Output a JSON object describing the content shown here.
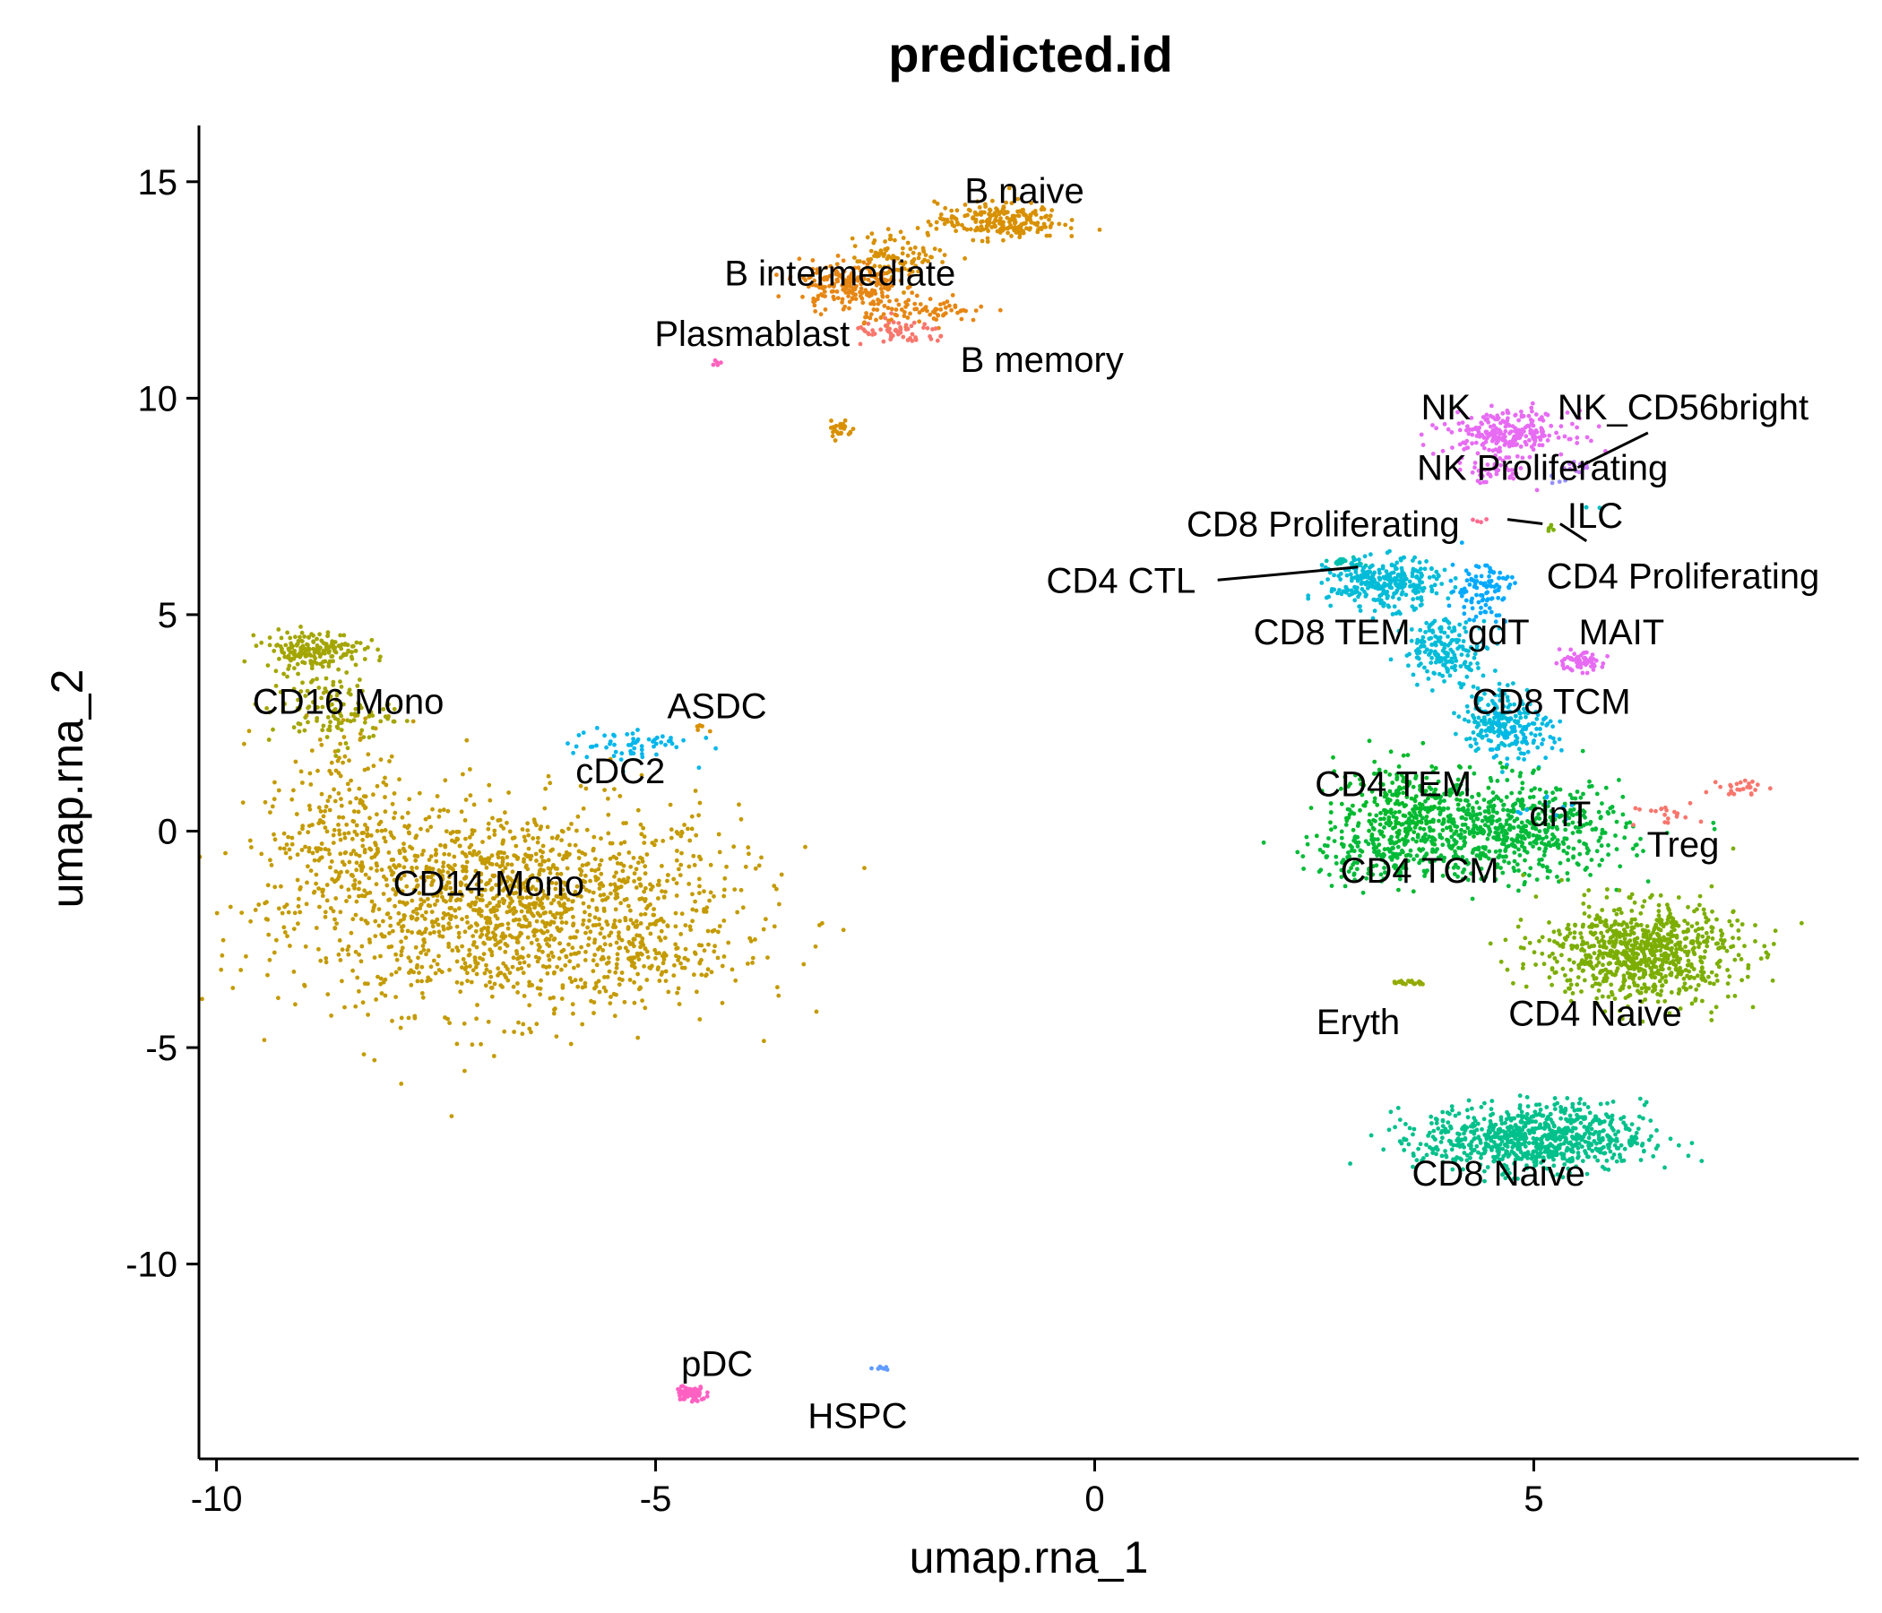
{
  "chart_data": {
    "type": "scatter",
    "title": "predicted.id",
    "xlabel": "umap.rna_1",
    "ylabel": "umap.rna_2",
    "xlim": [
      -10.2,
      8.7
    ],
    "ylim": [
      -14.5,
      16.3
    ],
    "x_ticks": [
      -10,
      -5,
      0,
      5
    ],
    "x_tick_labels": [
      "-10",
      "-5",
      "0",
      "5"
    ],
    "y_ticks": [
      -10,
      -5,
      0,
      5,
      10,
      15
    ],
    "y_tick_labels": [
      "-10",
      "-5",
      "0",
      "5",
      "10",
      "15"
    ],
    "grid": false,
    "legend": "none",
    "clusters": [
      {
        "name": "CD14 Mono",
        "color": "#C49A00",
        "label_x": -6.9,
        "label_y": -1.2,
        "blobs": [
          {
            "cx": -6.6,
            "cy": -1.8,
            "sx": 1.8,
            "sy": 1.7,
            "n": 1500
          },
          {
            "cx": -8.6,
            "cy": 0.0,
            "sx": 0.6,
            "sy": 1.8,
            "n": 250
          },
          {
            "cx": -5.0,
            "cy": -3.0,
            "sx": 0.7,
            "sy": 0.4,
            "n": 80
          }
        ]
      },
      {
        "name": "CD16 Mono",
        "color": "#A3A500",
        "label_x": -8.5,
        "label_y": 3.0,
        "blobs": [
          {
            "cx": -8.9,
            "cy": 4.2,
            "sx": 0.4,
            "sy": 0.3,
            "n": 180
          },
          {
            "cx": -8.7,
            "cy": 2.8,
            "sx": 0.5,
            "sy": 0.6,
            "n": 120
          }
        ]
      },
      {
        "name": "cDC2",
        "color": "#00B6EB",
        "label_x": -5.4,
        "label_y": 1.4,
        "blobs": [
          {
            "cx": -5.3,
            "cy": 2.0,
            "sx": 0.5,
            "sy": 0.3,
            "n": 60
          }
        ]
      },
      {
        "name": "ASDC",
        "color": "#D89000",
        "label_x": -4.3,
        "label_y": 2.9,
        "blobs": [
          {
            "cx": -4.5,
            "cy": 2.4,
            "sx": 0.1,
            "sy": 0.08,
            "n": 6
          }
        ]
      },
      {
        "name": "B naive",
        "color": "#D89000",
        "label_x": -0.8,
        "label_y": 14.8,
        "blobs": [
          {
            "cx": -1.1,
            "cy": 14.1,
            "sx": 0.5,
            "sy": 0.3,
            "n": 220
          },
          {
            "cx": -2.2,
            "cy": 13.3,
            "sx": 0.4,
            "sy": 0.4,
            "n": 100
          },
          {
            "cx": -2.9,
            "cy": 9.3,
            "sx": 0.1,
            "sy": 0.2,
            "n": 25
          }
        ]
      },
      {
        "name": "B intermediate",
        "color": "#E68613",
        "label_x": -2.9,
        "label_y": 12.9,
        "blobs": [
          {
            "cx": -2.8,
            "cy": 12.6,
            "sx": 0.4,
            "sy": 0.4,
            "n": 200
          },
          {
            "cx": -1.9,
            "cy": 12.0,
            "sx": 0.5,
            "sy": 0.2,
            "n": 80
          }
        ]
      },
      {
        "name": "B memory",
        "color": "#F8766D",
        "label_x": -0.6,
        "label_y": 10.9,
        "blobs": [
          {
            "cx": -2.2,
            "cy": 11.5,
            "sx": 0.4,
            "sy": 0.2,
            "n": 60
          }
        ]
      },
      {
        "name": "Plasmablast",
        "color": "#FF62BC",
        "label_x": -3.9,
        "label_y": 11.5,
        "blobs": [
          {
            "cx": -4.3,
            "cy": 10.8,
            "sx": 0.08,
            "sy": 0.04,
            "n": 5
          }
        ]
      },
      {
        "name": "pDC",
        "color": "#FF61C3",
        "label_x": -4.3,
        "label_y": -12.3,
        "blobs": [
          {
            "cx": -4.6,
            "cy": -13.0,
            "sx": 0.12,
            "sy": 0.12,
            "n": 90
          }
        ]
      },
      {
        "name": "HSPC",
        "color": "#619CFF",
        "label_x": -2.7,
        "label_y": -13.5,
        "blobs": [
          {
            "cx": -2.4,
            "cy": -12.4,
            "sx": 0.08,
            "sy": 0.04,
            "n": 8
          }
        ]
      },
      {
        "name": "NK",
        "color": "#E76BF3",
        "label_x": 4.0,
        "label_y": 9.8,
        "blobs": [
          {
            "cx": 4.7,
            "cy": 9.2,
            "sx": 0.5,
            "sy": 0.35,
            "n": 250
          },
          {
            "cx": 4.5,
            "cy": 8.3,
            "sx": 0.3,
            "sy": 0.2,
            "n": 40
          }
        ]
      },
      {
        "name": "NK_CD56bright",
        "color": "#C77CFF",
        "label_x": 6.7,
        "label_y": 9.8,
        "blobs": [
          {
            "cx": 5.5,
            "cy": 8.4,
            "sx": 0.12,
            "sy": 0.1,
            "n": 12
          }
        ]
      },
      {
        "name": "NK Proliferating",
        "color": "#9590FF",
        "label_x": 5.1,
        "label_y": 8.4,
        "blobs": [
          {
            "cx": 5.3,
            "cy": 8.1,
            "sx": 0.08,
            "sy": 0.08,
            "n": 4
          }
        ]
      },
      {
        "name": "ILC",
        "color": "#00BFC4",
        "label_x": 5.7,
        "label_y": 7.3,
        "blobs": [
          {
            "cx": 5.6,
            "cy": 7.5,
            "sx": 0.05,
            "sy": 0.05,
            "n": 3
          }
        ]
      },
      {
        "name": "CD8 Proliferating",
        "color": "#FF6C91",
        "label_x": 2.6,
        "label_y": 7.1,
        "blobs": [
          {
            "cx": 4.4,
            "cy": 7.2,
            "sx": 0.08,
            "sy": 0.08,
            "n": 4
          }
        ]
      },
      {
        "name": "CD4 Proliferating",
        "color": "#7CAE00",
        "label_x": 6.7,
        "label_y": 5.9,
        "blobs": [
          {
            "cx": 5.2,
            "cy": 7.0,
            "sx": 0.05,
            "sy": 0.08,
            "n": 5
          }
        ]
      },
      {
        "name": "CD4 CTL",
        "color": "#00C0AF",
        "label_x": 0.3,
        "label_y": 5.8,
        "blobs": [
          {
            "cx": 2.9,
            "cy": 6.2,
            "sx": 0.15,
            "sy": 0.08,
            "n": 25
          }
        ]
      },
      {
        "name": "CD8 TEM",
        "color": "#00BCD8",
        "label_x": 2.7,
        "label_y": 4.6,
        "blobs": [
          {
            "cx": 3.3,
            "cy": 5.7,
            "sx": 0.45,
            "sy": 0.4,
            "n": 300
          },
          {
            "cx": 4.0,
            "cy": 4.2,
            "sx": 0.35,
            "sy": 0.5,
            "n": 180
          },
          {
            "cx": 4.6,
            "cy": 2.6,
            "sx": 0.3,
            "sy": 0.6,
            "n": 160
          }
        ]
      },
      {
        "name": "gdT",
        "color": "#00A9FF",
        "label_x": 4.6,
        "label_y": 4.6,
        "blobs": [
          {
            "cx": 4.4,
            "cy": 5.6,
            "sx": 0.25,
            "sy": 0.5,
            "n": 100
          }
        ]
      },
      {
        "name": "MAIT",
        "color": "#E76BF3",
        "label_x": 6.0,
        "label_y": 4.6,
        "blobs": [
          {
            "cx": 5.5,
            "cy": 3.9,
            "sx": 0.2,
            "sy": 0.15,
            "n": 70
          }
        ]
      },
      {
        "name": "CD8 TCM",
        "color": "#00B8E7",
        "label_x": 5.2,
        "label_y": 3.0,
        "blobs": [
          {
            "cx": 4.8,
            "cy": 2.2,
            "sx": 0.35,
            "sy": 0.4,
            "n": 80
          }
        ]
      },
      {
        "name": "CD4 TEM",
        "color": "#00B929",
        "label_x": 3.4,
        "label_y": 1.1,
        "blobs": [
          {
            "cx": 3.6,
            "cy": 0.5,
            "sx": 0.6,
            "sy": 0.8,
            "n": 300
          }
        ]
      },
      {
        "name": "CD4 TCM",
        "color": "#00BA38",
        "label_x": 3.7,
        "label_y": -0.9,
        "blobs": [
          {
            "cx": 4.8,
            "cy": 0.0,
            "sx": 0.9,
            "sy": 0.8,
            "n": 600
          },
          {
            "cx": 3.2,
            "cy": -0.6,
            "sx": 0.6,
            "sy": 0.4,
            "n": 150
          }
        ]
      },
      {
        "name": "dnT",
        "color": "#00B0F6",
        "label_x": 5.3,
        "label_y": 0.4,
        "blobs": [
          {
            "cx": 5.0,
            "cy": 0.6,
            "sx": 0.3,
            "sy": 0.3,
            "n": 10
          }
        ]
      },
      {
        "name": "Treg",
        "color": "#F8766D",
        "label_x": 6.7,
        "label_y": -0.3,
        "blobs": [
          {
            "cx": 7.4,
            "cy": 1.0,
            "sx": 0.2,
            "sy": 0.15,
            "n": 25
          },
          {
            "cx": 6.5,
            "cy": 0.4,
            "sx": 0.3,
            "sy": 0.2,
            "n": 20
          }
        ]
      },
      {
        "name": "CD4 Naive",
        "color": "#7CAE00",
        "label_x": 5.7,
        "label_y": -4.2,
        "blobs": [
          {
            "cx": 6.2,
            "cy": -2.8,
            "sx": 0.8,
            "sy": 0.8,
            "n": 800
          }
        ]
      },
      {
        "name": "CD8 Naive",
        "color": "#00C08B",
        "label_x": 4.6,
        "label_y": -7.9,
        "blobs": [
          {
            "cx": 5.0,
            "cy": -7.1,
            "sx": 0.9,
            "sy": 0.55,
            "n": 800
          }
        ]
      },
      {
        "name": "Eryth",
        "color": "#93AA00",
        "label_x": 3.0,
        "label_y": -4.4,
        "blobs": [
          {
            "cx": 3.6,
            "cy": -3.5,
            "sx": 0.15,
            "sy": 0.05,
            "n": 20
          }
        ]
      }
    ],
    "leader_lines": [
      {
        "from": [
          3.0,
          6.1
        ],
        "to": [
          1.4,
          5.8
        ]
      },
      {
        "from": [
          4.7,
          7.2
        ],
        "to": [
          5.1,
          7.1
        ]
      },
      {
        "from": [
          5.5,
          8.4
        ],
        "to": [
          6.3,
          9.2
        ]
      },
      {
        "from": [
          5.3,
          7.1
        ],
        "to": [
          5.6,
          6.7
        ]
      }
    ]
  }
}
